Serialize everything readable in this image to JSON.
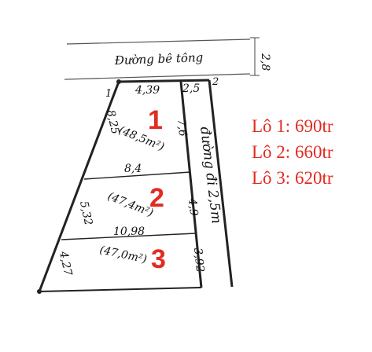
{
  "road": {
    "label": "Đường bê tông",
    "width": "2,8"
  },
  "alley": {
    "label": "đường đi 2,5m",
    "width": "2,5"
  },
  "corners": {
    "c1": "1",
    "c2": "2"
  },
  "dimensions": {
    "top_edge": "4,39",
    "left_lot1": "8,25",
    "left_lot2": "5,32",
    "left_lot3": "4,27",
    "right_lot1": "7,6",
    "right_lot2": "4,9",
    "right_lot3": "3,92",
    "divider_1_2": "8,4",
    "divider_2_3": "10,98"
  },
  "lots": [
    {
      "number": "1",
      "area": "(48,5m²)"
    },
    {
      "number": "2",
      "area": "(47,4m²)"
    },
    {
      "number": "3",
      "area": "(47,0m²)"
    }
  ],
  "prices": [
    {
      "label": "Lô 1: 690tr"
    },
    {
      "label": "Lô 2: 660tr"
    },
    {
      "label": "Lô 3: 620tr"
    }
  ],
  "colors": {
    "accent": "#e32b20",
    "ink": "#111111"
  }
}
